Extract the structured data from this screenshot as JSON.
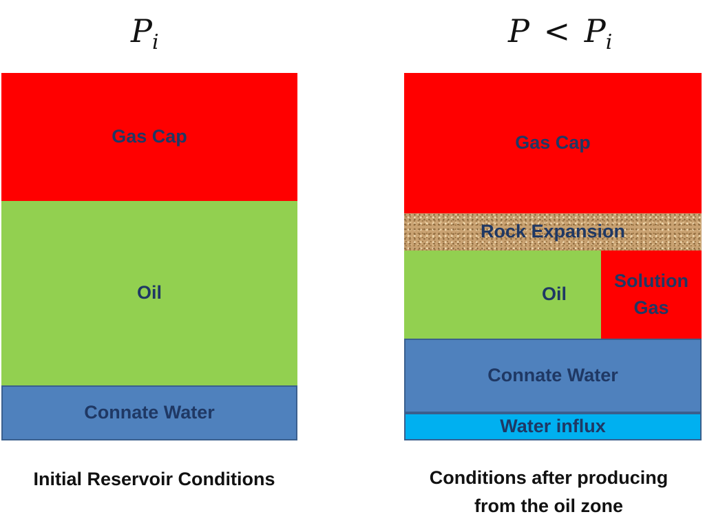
{
  "left_panel": {
    "pressure_symbol": "P",
    "pressure_subscript": "i",
    "zones": {
      "gas_cap": "Gas Cap",
      "oil": "Oil",
      "connate_water": "Connate Water"
    },
    "caption": "Initial Reservoir Conditions"
  },
  "right_panel": {
    "pressure_symbol": "P",
    "pressure_operator": "<",
    "pressure_ref_symbol": "P",
    "pressure_ref_subscript": "i",
    "zones": {
      "gas_cap": "Gas Cap",
      "rock_expansion": "Rock Expansion",
      "oil": "Oil",
      "solution_gas_line1": "Solution",
      "solution_gas_line2": "Gas",
      "connate_water": "Connate Water",
      "water_influx": "Water influx"
    },
    "caption_line1": "Conditions after producing",
    "caption_line2": "from the oil zone"
  },
  "colors": {
    "gas": "#ff0000",
    "oil": "#92d050",
    "connate_water": "#4f81bd",
    "water_influx": "#00b0f0",
    "rock": "#c9a272",
    "zone_text": "#1f3864"
  }
}
